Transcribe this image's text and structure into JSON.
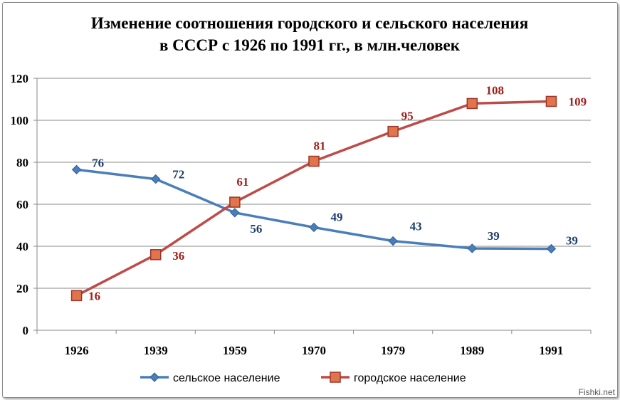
{
  "chart_data": {
    "type": "line",
    "title_lines": [
      "Изменение соотношения городского и сельского населения",
      "в СССР с 1926 по 1991 гг.,  в млн.человек"
    ],
    "categories": [
      "1926",
      "1939",
      "1959",
      "1970",
      "1979",
      "1989",
      "1991"
    ],
    "ylim": [
      0,
      120
    ],
    "yticks": [
      0,
      20,
      40,
      60,
      80,
      100,
      120
    ],
    "grid": true,
    "legend_position": "bottom",
    "series": [
      {
        "name": "сельское население",
        "color": "#4a7ebb",
        "label_color": "#1f3e6e",
        "marker": "diamond",
        "values": [
          76.5,
          72,
          56,
          49,
          42.5,
          39,
          38.8
        ],
        "labels": [
          "76",
          "72",
          "56",
          "49",
          "43",
          "39",
          "39"
        ]
      },
      {
        "name": "городское население",
        "color": "#be4b48",
        "label_color": "#a0201c",
        "marker": "square",
        "values": [
          16.5,
          36,
          61,
          80.5,
          94.7,
          108,
          109
        ],
        "labels": [
          "16",
          "36",
          "61",
          "81",
          "95",
          "108",
          "109"
        ]
      }
    ]
  },
  "watermark": "Fishki.net"
}
